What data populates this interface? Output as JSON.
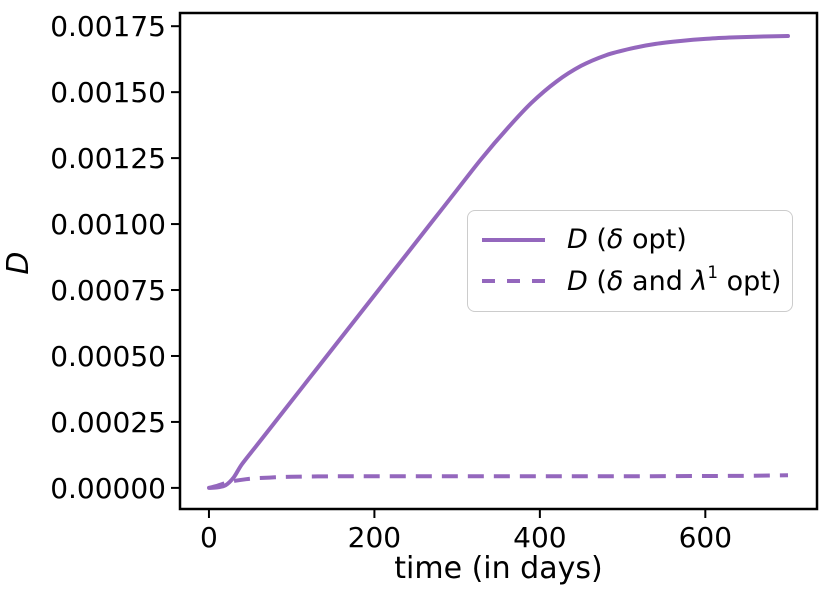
{
  "figure": {
    "background": "#ffffff"
  },
  "style": {
    "line_color": "#9467bd",
    "axis_color": "#000000",
    "tick_label_color": "#000000",
    "legend_border_color": "#cccccc"
  },
  "chart_data": {
    "type": "line",
    "title": "",
    "xlabel": "time (in days)",
    "ylabel": "D",
    "xlim": [
      -35,
      735
    ],
    "ylim": [
      -8e-05,
      0.0018
    ],
    "grid": false,
    "legend_position": "center right",
    "xticks": {
      "values": [
        0,
        200,
        400,
        600
      ],
      "labels": [
        "0",
        "200",
        "400",
        "600"
      ]
    },
    "yticks": {
      "values": [
        0,
        0.00025,
        0.0005,
        0.00075,
        0.001,
        0.00125,
        0.0015,
        0.00175
      ],
      "labels": [
        "0.00000",
        "0.00025",
        "0.00050",
        "0.00075",
        "0.00100",
        "0.00125",
        "0.00150",
        "0.00175"
      ]
    },
    "series": [
      {
        "name": "D (delta opt)",
        "style": "solid",
        "color": "#9467bd",
        "x": [
          0,
          10,
          20,
          30,
          40,
          60,
          90,
          120,
          150,
          180,
          210,
          240,
          270,
          300,
          330,
          360,
          390,
          420,
          450,
          480,
          510,
          540,
          570,
          600,
          630,
          660,
          700
        ],
        "y": [
          0,
          2e-06,
          1e-05,
          4e-05,
          9e-05,
          0.00017,
          0.00029,
          0.00041,
          0.00053,
          0.00065,
          0.00077,
          0.00089,
          0.00101,
          0.00113,
          0.00125,
          0.00136,
          0.00146,
          0.00154,
          0.0016,
          0.00164,
          0.001665,
          0.001683,
          0.001694,
          0.001702,
          0.001707,
          0.00171,
          0.001713
        ]
      },
      {
        "name": "D (delta and lambda1 opt)",
        "style": "dashed",
        "color": "#9467bd",
        "x": [
          0,
          10,
          20,
          30,
          45,
          60,
          80,
          100,
          150,
          200,
          300,
          400,
          500,
          600,
          650,
          700
        ],
        "y": [
          0,
          8e-06,
          1.8e-05,
          2.6e-05,
          3.3e-05,
          3.7e-05,
          4e-05,
          4.2e-05,
          4.4e-05,
          4.4e-05,
          4.4e-05,
          4.4e-05,
          4.4e-05,
          4.5e-05,
          4.6e-05,
          4.8e-05
        ]
      }
    ],
    "legend": {
      "items": [
        {
          "name": "D (delta opt)",
          "parts": [
            {
              "t": "D"
            },
            {
              "t": " ("
            },
            {
              "t": "δ"
            },
            {
              "t": " opt)"
            }
          ]
        },
        {
          "name": "D (delta and lambda^1 opt)",
          "parts": [
            {
              "t": "D"
            },
            {
              "t": " ("
            },
            {
              "t": "δ"
            },
            {
              "t": " and "
            },
            {
              "t": "λ"
            },
            {
              "t": "1"
            },
            {
              "t": " opt)"
            }
          ]
        }
      ]
    }
  }
}
